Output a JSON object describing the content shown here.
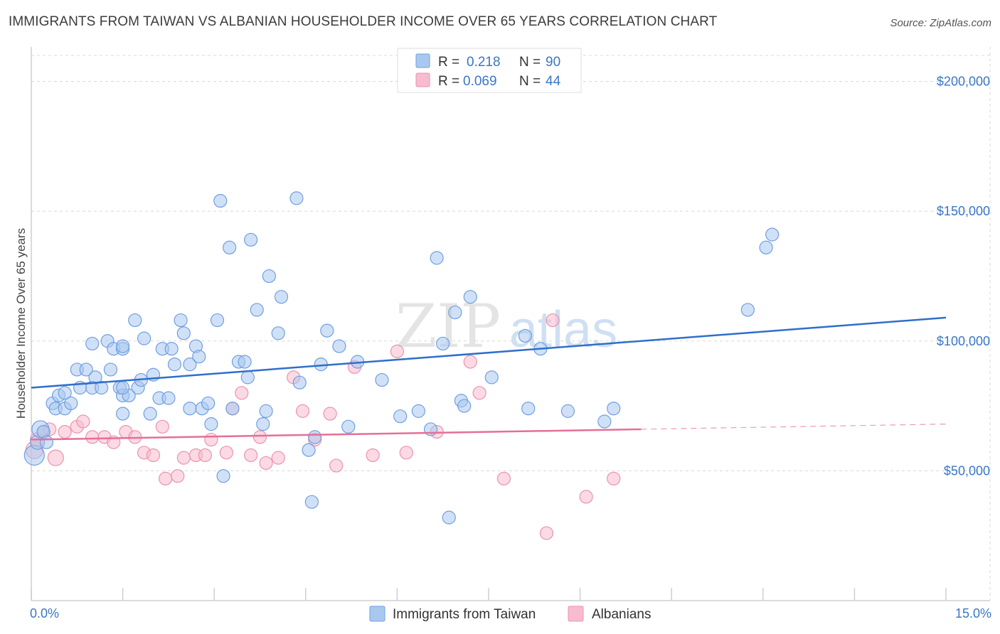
{
  "header": {
    "title": "IMMIGRANTS FROM TAIWAN VS ALBANIAN HOUSEHOLDER INCOME OVER 65 YEARS CORRELATION CHART",
    "source": "Source: ZipAtlas.com"
  },
  "watermark": {
    "zip": "ZIP",
    "atlas": "atlas"
  },
  "colors": {
    "taiwan_fill": "#a9c8f0",
    "taiwan_stroke": "#6f9fe0",
    "taiwan_line": "#2f6fcb",
    "albanian_fill": "#f7bccd",
    "albanian_stroke": "#ec93ae",
    "albanian_line": "#e56f97",
    "grid": "#d8d8d8",
    "tick_text": "#3a76c8"
  },
  "legend": {
    "rows": [
      {
        "r_label": "R =",
        "r_value": "0.218",
        "n_label": "N =",
        "n_value": "90"
      },
      {
        "r_label": "R =",
        "r_value": "0.069",
        "n_label": "N =",
        "n_value": "44"
      }
    ]
  },
  "chart_data": {
    "type": "scatter",
    "title": "IMMIGRANTS FROM TAIWAN VS ALBANIAN HOUSEHOLDER INCOME OVER 65 YEARS CORRELATION CHART",
    "xlabel": "",
    "ylabel": "Householder Income Over 65 years",
    "xlim": [
      0,
      15
    ],
    "ylim": [
      0,
      210000
    ],
    "x_tick_labels": [
      {
        "value": 0,
        "label": "0.0%"
      },
      {
        "value": 15,
        "label": "15.0%"
      }
    ],
    "y_tick_labels": [
      {
        "value": 50000,
        "label": "$50,000"
      },
      {
        "value": 100000,
        "label": "$100,000"
      },
      {
        "value": 150000,
        "label": "$150,000"
      },
      {
        "value": 200000,
        "label": "$200,000"
      }
    ],
    "grid": true,
    "legend_position": "top-center",
    "series": [
      {
        "name": "Immigrants from Taiwan",
        "r": 0.218,
        "n": 90,
        "trend": {
          "x": [
            0,
            15
          ],
          "y": [
            82000,
            109000
          ]
        },
        "points": [
          [
            0.05,
            56000,
            14
          ],
          [
            0.1,
            61000,
            10
          ],
          [
            0.15,
            66000,
            12
          ],
          [
            0.2,
            65000,
            9
          ],
          [
            0.25,
            61000,
            9
          ],
          [
            0.35,
            76000,
            9
          ],
          [
            0.4,
            74000,
            9
          ],
          [
            0.45,
            79000,
            9
          ],
          [
            0.55,
            80000,
            9
          ],
          [
            0.55,
            74000,
            9
          ],
          [
            0.65,
            76000,
            9
          ],
          [
            0.75,
            89000,
            9
          ],
          [
            0.8,
            82000,
            9
          ],
          [
            0.9,
            89000,
            9
          ],
          [
            1.0,
            82000,
            9
          ],
          [
            1.05,
            86000,
            9
          ],
          [
            1.0,
            99000,
            9
          ],
          [
            1.15,
            82000,
            9
          ],
          [
            1.25,
            100000,
            9
          ],
          [
            1.3,
            89000,
            9
          ],
          [
            1.35,
            97000,
            9
          ],
          [
            1.45,
            82000,
            9
          ],
          [
            1.5,
            79000,
            9
          ],
          [
            1.6,
            79000,
            9
          ],
          [
            1.5,
            82000,
            9
          ],
          [
            1.5,
            97000,
            9
          ],
          [
            1.5,
            98000,
            9
          ],
          [
            1.5,
            72000,
            9
          ],
          [
            1.7,
            108000,
            9
          ],
          [
            1.75,
            82000,
            9
          ],
          [
            1.8,
            85000,
            9
          ],
          [
            1.85,
            101000,
            9
          ],
          [
            1.95,
            72000,
            9
          ],
          [
            2.0,
            87000,
            9
          ],
          [
            2.1,
            78000,
            9
          ],
          [
            2.15,
            97000,
            9
          ],
          [
            2.25,
            78000,
            9
          ],
          [
            2.3,
            97000,
            9
          ],
          [
            2.35,
            91000,
            9
          ],
          [
            2.45,
            108000,
            9
          ],
          [
            2.5,
            103000,
            9
          ],
          [
            2.6,
            74000,
            9
          ],
          [
            2.6,
            91000,
            9
          ],
          [
            2.7,
            98000,
            9
          ],
          [
            2.75,
            94000,
            9
          ],
          [
            2.8,
            74000,
            9
          ],
          [
            2.9,
            76000,
            9
          ],
          [
            2.95,
            68000,
            9
          ],
          [
            3.05,
            108000,
            9
          ],
          [
            3.1,
            154000,
            9
          ],
          [
            3.15,
            48000,
            9
          ],
          [
            3.25,
            136000,
            9
          ],
          [
            3.3,
            74000,
            9
          ],
          [
            3.4,
            92000,
            9
          ],
          [
            3.5,
            92000,
            9
          ],
          [
            3.55,
            86000,
            9
          ],
          [
            3.6,
            139000,
            9
          ],
          [
            3.7,
            112000,
            9
          ],
          [
            3.8,
            68000,
            9
          ],
          [
            3.85,
            73000,
            9
          ],
          [
            3.9,
            125000,
            9
          ],
          [
            4.05,
            103000,
            9
          ],
          [
            4.1,
            117000,
            9
          ],
          [
            4.35,
            155000,
            9
          ],
          [
            4.4,
            84000,
            9
          ],
          [
            4.55,
            58000,
            9
          ],
          [
            4.6,
            38000,
            9
          ],
          [
            4.65,
            63000,
            9
          ],
          [
            4.75,
            91000,
            9
          ],
          [
            4.85,
            104000,
            9
          ],
          [
            5.05,
            98000,
            9
          ],
          [
            5.2,
            67000,
            9
          ],
          [
            5.35,
            92000,
            9
          ],
          [
            5.75,
            85000,
            9
          ],
          [
            6.05,
            71000,
            9
          ],
          [
            6.35,
            73000,
            9
          ],
          [
            6.55,
            66000,
            9
          ],
          [
            6.65,
            132000,
            9
          ],
          [
            6.75,
            99000,
            9
          ],
          [
            6.85,
            32000,
            9
          ],
          [
            6.95,
            111000,
            9
          ],
          [
            7.05,
            77000,
            9
          ],
          [
            7.1,
            75000,
            9
          ],
          [
            7.2,
            117000,
            9
          ],
          [
            7.55,
            86000,
            9
          ],
          [
            8.1,
            102000,
            9
          ],
          [
            8.15,
            74000,
            9
          ],
          [
            8.35,
            97000,
            9
          ],
          [
            8.8,
            73000,
            9
          ],
          [
            9.4,
            69000,
            9
          ],
          [
            9.55,
            74000,
            9
          ],
          [
            11.75,
            112000,
            9
          ],
          [
            12.05,
            136000,
            9
          ],
          [
            12.15,
            141000,
            9
          ]
        ]
      },
      {
        "name": "Albanians",
        "r": 0.069,
        "n": 44,
        "trend": {
          "x": [
            0,
            10.0
          ],
          "y": [
            62000,
            66000
          ]
        },
        "trend_dashed": {
          "x": [
            10.0,
            15
          ],
          "y": [
            66000,
            68000
          ]
        },
        "points": [
          [
            0.05,
            58000,
            12
          ],
          [
            0.1,
            62000,
            10
          ],
          [
            0.2,
            65000,
            9
          ],
          [
            0.3,
            66000,
            9
          ],
          [
            0.4,
            55000,
            11
          ],
          [
            0.55,
            65000,
            9
          ],
          [
            0.75,
            67000,
            9
          ],
          [
            0.85,
            69000,
            9
          ],
          [
            1.0,
            63000,
            9
          ],
          [
            1.2,
            63000,
            9
          ],
          [
            1.35,
            61000,
            9
          ],
          [
            1.55,
            65000,
            9
          ],
          [
            1.7,
            63000,
            9
          ],
          [
            1.85,
            57000,
            9
          ],
          [
            2.0,
            56000,
            9
          ],
          [
            2.15,
            67000,
            9
          ],
          [
            2.2,
            47000,
            9
          ],
          [
            2.4,
            48000,
            9
          ],
          [
            2.5,
            55000,
            9
          ],
          [
            2.7,
            56000,
            9
          ],
          [
            2.85,
            56000,
            9
          ],
          [
            2.95,
            62000,
            9
          ],
          [
            3.2,
            57000,
            9
          ],
          [
            3.3,
            74000,
            9
          ],
          [
            3.45,
            80000,
            9
          ],
          [
            3.6,
            56000,
            9
          ],
          [
            3.75,
            63000,
            9
          ],
          [
            3.85,
            53000,
            9
          ],
          [
            4.05,
            55000,
            9
          ],
          [
            4.3,
            86000,
            9
          ],
          [
            4.45,
            73000,
            9
          ],
          [
            4.65,
            62000,
            9
          ],
          [
            4.9,
            72000,
            9
          ],
          [
            5.0,
            52000,
            9
          ],
          [
            5.3,
            90000,
            9
          ],
          [
            5.6,
            56000,
            9
          ],
          [
            6.0,
            96000,
            9
          ],
          [
            6.15,
            57000,
            9
          ],
          [
            6.65,
            65000,
            9
          ],
          [
            7.2,
            92000,
            9
          ],
          [
            7.35,
            80000,
            9
          ],
          [
            7.75,
            47000,
            9
          ],
          [
            8.45,
            26000,
            9
          ],
          [
            8.55,
            108000,
            9
          ],
          [
            9.1,
            40000,
            9
          ],
          [
            9.55,
            47000,
            9
          ]
        ]
      }
    ]
  }
}
